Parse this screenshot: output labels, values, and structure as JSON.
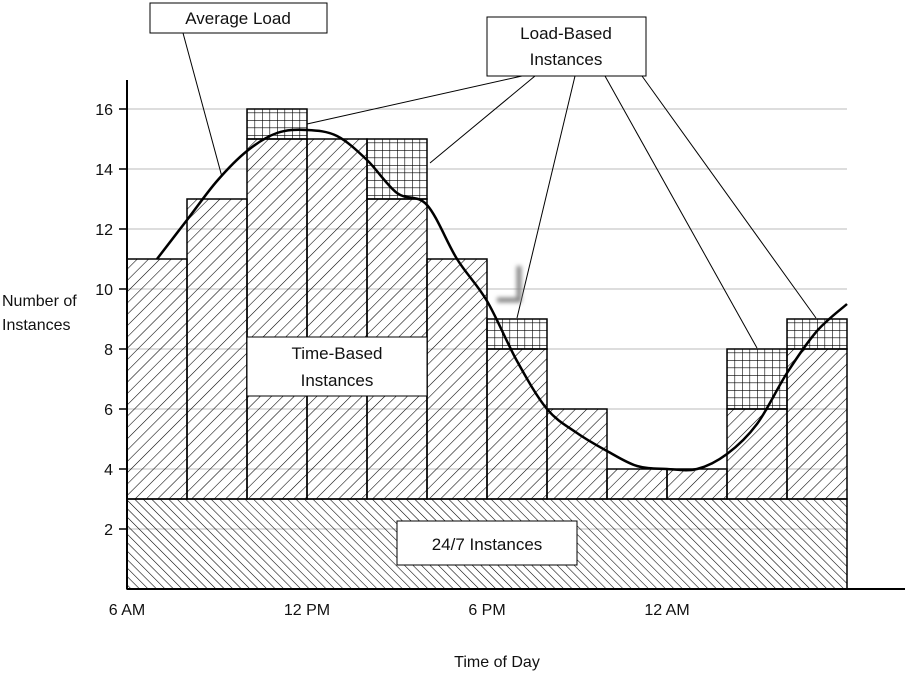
{
  "chart_data": {
    "type": "bar",
    "title": "",
    "xlabel": "Time of Day",
    "ylabel": "Number of Instances",
    "ylabel_lines": [
      "Number of",
      "Instances"
    ],
    "ylim": [
      0,
      17
    ],
    "yticks": [
      2,
      4,
      6,
      8,
      10,
      12,
      14,
      16
    ],
    "xticks": [
      {
        "hour": 0,
        "label": "6 AM"
      },
      {
        "hour": 6,
        "label": "12 PM"
      },
      {
        "hour": 12,
        "label": "6 PM"
      },
      {
        "hour": 18,
        "label": "12 AM"
      }
    ],
    "grid": true,
    "hours_per_bar": 2,
    "baseline_247": 3,
    "time_based_totals": [
      11,
      13,
      15,
      15,
      13,
      11,
      8,
      6,
      4,
      4,
      6,
      8
    ],
    "load_based_extra": [
      0,
      0,
      1,
      0,
      2,
      0,
      1,
      0,
      0,
      0,
      2,
      1
    ],
    "average_load": [
      [
        1,
        11
      ],
      [
        2,
        12.3
      ],
      [
        3,
        13.6
      ],
      [
        4,
        14.6
      ],
      [
        5,
        15.2
      ],
      [
        6,
        15.3
      ],
      [
        7,
        15.1
      ],
      [
        8,
        14.3
      ],
      [
        9,
        13.2
      ],
      [
        10,
        12.8
      ],
      [
        11,
        11
      ],
      [
        12,
        9.6
      ],
      [
        13,
        7.6
      ],
      [
        14,
        6
      ],
      [
        15,
        5.2
      ],
      [
        16,
        4.6
      ],
      [
        17,
        4.1
      ],
      [
        18,
        4
      ],
      [
        19,
        4
      ],
      [
        20,
        4.5
      ],
      [
        21,
        5.5
      ],
      [
        22,
        7.2
      ],
      [
        23,
        8.6
      ],
      [
        24,
        9.5
      ]
    ],
    "annotations": {
      "average_load": "Average Load",
      "load_based": [
        "Load-Based",
        "Instances"
      ],
      "time_based": [
        "Time-Based",
        "Instances"
      ],
      "always_on": "24/7 Instances"
    }
  }
}
